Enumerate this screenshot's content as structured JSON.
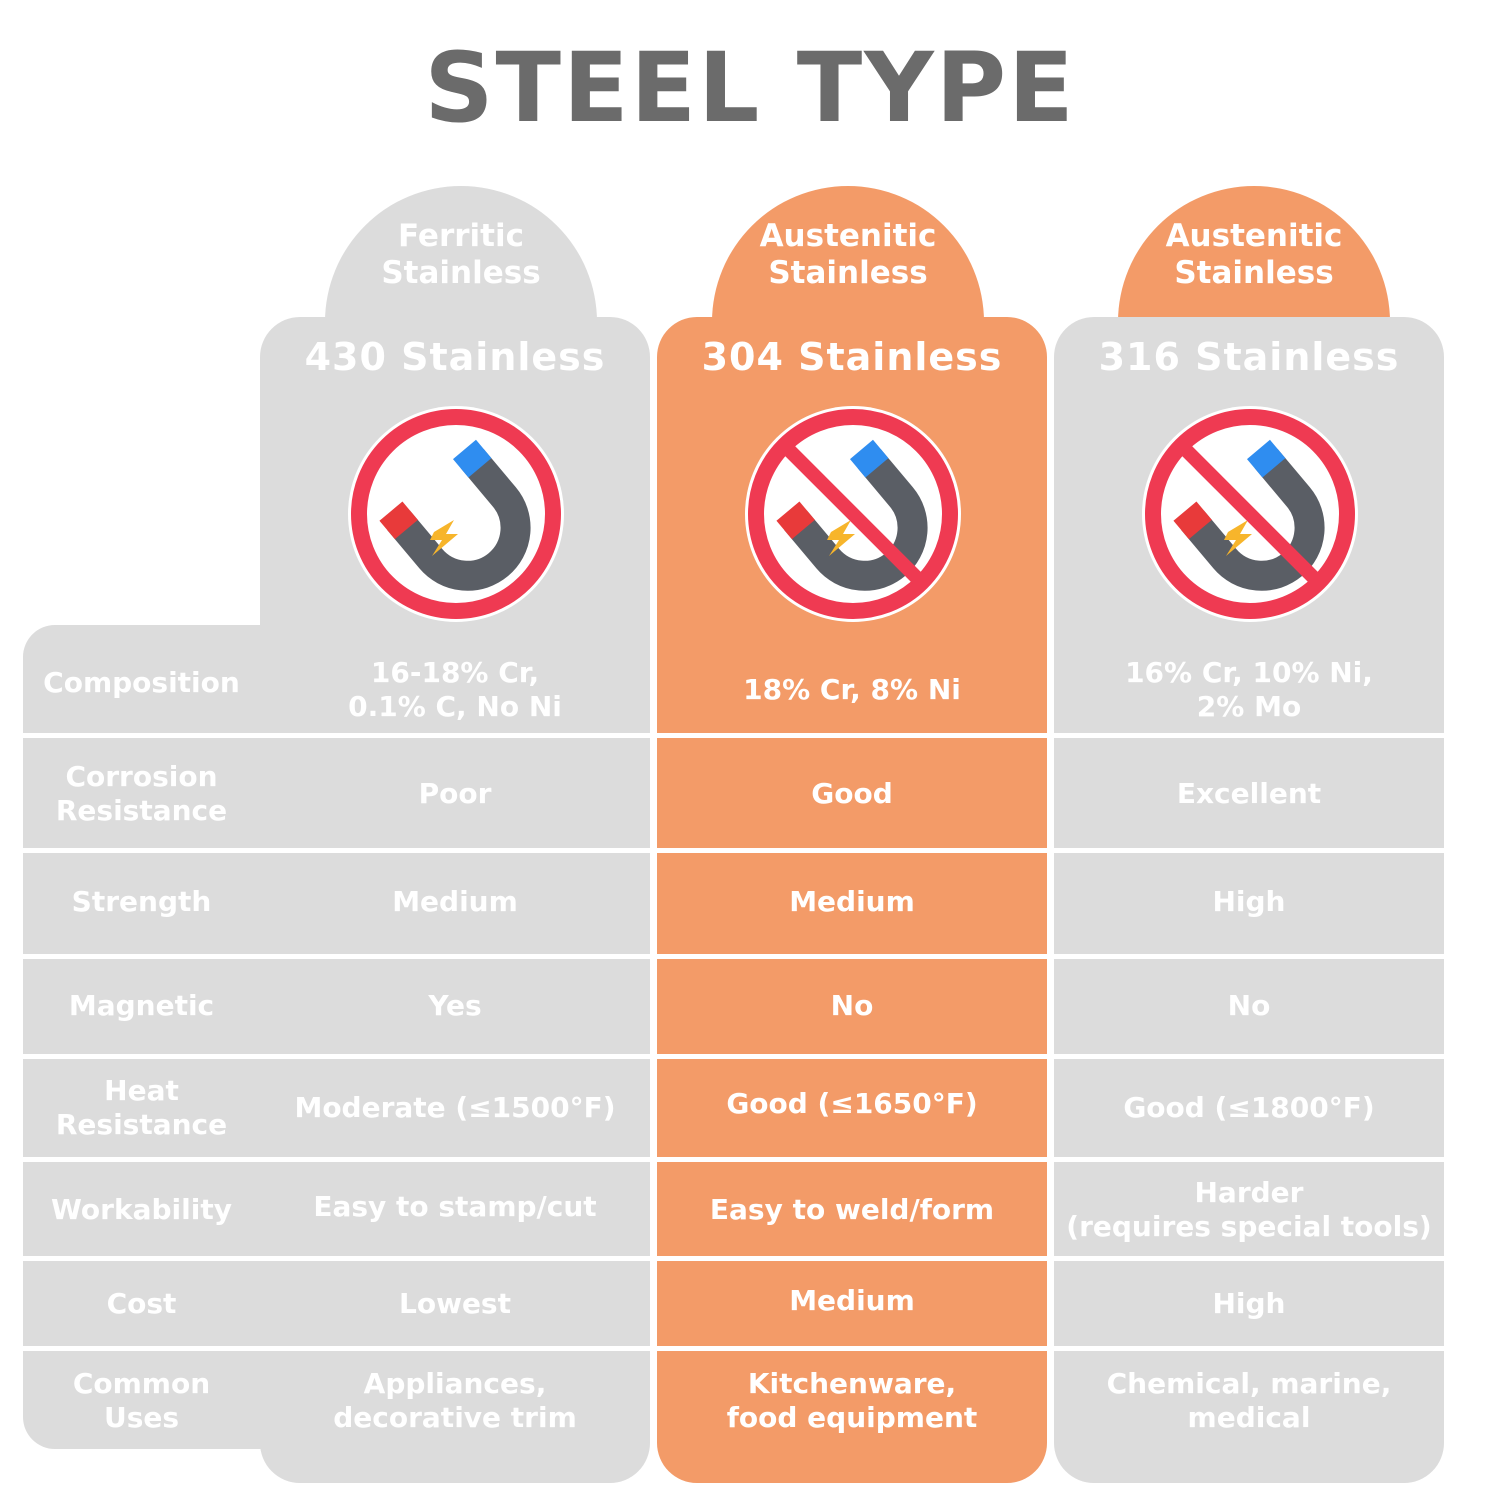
{
  "title": "STEEL TYPE",
  "colors": {
    "gray_panel": "#dcdcdc",
    "orange_panel": "#f39b68",
    "title_text": "#6b6b6b",
    "no_sign_red": "#ef3a52",
    "magnet_body": "#5a5e65",
    "magnet_red_pole": "#e83a3a",
    "magnet_blue_pole": "#2f8df0",
    "spark_yellow": "#f7b52b"
  },
  "row_labels": [
    "Composition",
    "Corrosion\nResistance",
    "Strength",
    "Magnetic",
    "Heat\nResistance",
    "Workability",
    "Cost",
    "Common\nUses"
  ],
  "columns": [
    {
      "family": "Ferritic\nStainless",
      "grade": "430 Stainless",
      "icon": "magnet-no-sign-icon",
      "icon_crossed": false,
      "values": [
        "16-18% Cr,\n0.1% C, No Ni",
        "Poor",
        "Medium",
        "Yes",
        "Moderate (≤1500°F)",
        "Easy to stamp/cut",
        "Lowest",
        "Appliances,\ndecorative trim"
      ]
    },
    {
      "family": "Austenitic\nStainless",
      "grade": "304 Stainless",
      "icon": "magnet-no-sign-crossed-icon",
      "icon_crossed": true,
      "values": [
        "18% Cr, 8% Ni",
        "Good",
        "Medium",
        "No",
        "Good (≤1650°F)",
        "Easy to weld/form",
        "Medium",
        "Kitchenware,\nfood equipment"
      ]
    },
    {
      "family": "Austenitic\nStainless",
      "grade": "316 Stainless",
      "icon": "magnet-no-sign-crossed-icon",
      "icon_crossed": true,
      "values": [
        "16% Cr, 10% Ni,\n2% Mo",
        "Excellent",
        "High",
        "No",
        "Good (≤1800°F)",
        "Harder\n(requires special tools)",
        "High",
        "Chemical, marine,\nmedical"
      ]
    }
  ]
}
